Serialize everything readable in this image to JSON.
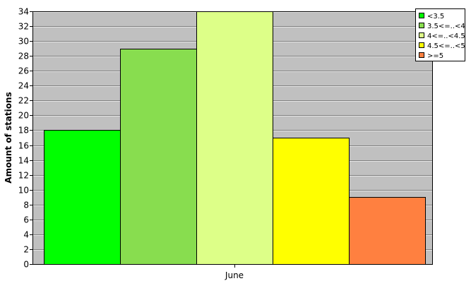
{
  "chart_data": {
    "type": "bar",
    "categories": [
      "June"
    ],
    "series": [
      {
        "name": "<3.5",
        "values": [
          18
        ],
        "color": "#00ff00"
      },
      {
        "name": "3.5<=..<4",
        "values": [
          29
        ],
        "color": "#88dd4f"
      },
      {
        "name": "4<=..<4.5",
        "values": [
          34
        ],
        "color": "#ddff88"
      },
      {
        "name": "4.5<=..<5",
        "values": [
          17
        ],
        "color": "#ffff00"
      },
      {
        "name": ">=5",
        "values": [
          9
        ],
        "color": "#ff8040"
      }
    ],
    "title": "",
    "xlabel": "",
    "ylabel": "Amount of stations",
    "ylim": [
      0,
      34
    ],
    "yticks": [
      0,
      2,
      4,
      6,
      8,
      10,
      12,
      14,
      16,
      18,
      20,
      22,
      24,
      26,
      28,
      30,
      32,
      34
    ],
    "grid": true,
    "legend_position": "top-right",
    "plot_background": "#c0c0c0"
  }
}
